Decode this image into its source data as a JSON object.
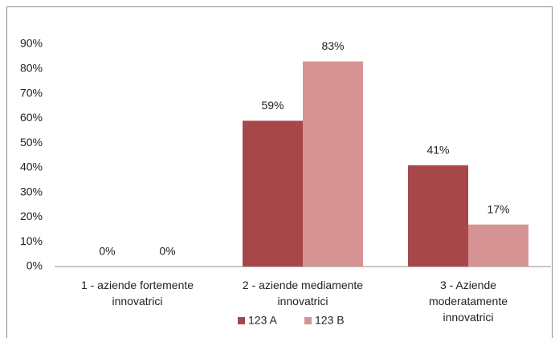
{
  "chart_data": {
    "type": "bar",
    "categories": [
      "1 - aziende fortemente innovatrici",
      "2 - aziende mediamente innovatrici",
      "3 - Aziende moderatamente innovatrici"
    ],
    "series": [
      {
        "name": "123 A",
        "color": "#a84749",
        "values": [
          0,
          59,
          41
        ],
        "value_labels": [
          "0%",
          "59%",
          "41%"
        ]
      },
      {
        "name": "123 B",
        "color": "#d59394",
        "values": [
          0,
          83,
          17
        ],
        "value_labels": [
          "0%",
          "83%",
          "17%"
        ]
      }
    ],
    "ylim": [
      0,
      90
    ],
    "yticks": [
      {
        "value": 0,
        "label": "0%"
      },
      {
        "value": 10,
        "label": "10%"
      },
      {
        "value": 20,
        "label": "20%"
      },
      {
        "value": 30,
        "label": "30%"
      },
      {
        "value": 40,
        "label": "40%"
      },
      {
        "value": 50,
        "label": "50%"
      },
      {
        "value": 60,
        "label": "60%"
      },
      {
        "value": 70,
        "label": "70%"
      },
      {
        "value": 80,
        "label": "80%"
      },
      {
        "value": 90,
        "label": "90%"
      }
    ],
    "legend": "bottom"
  }
}
